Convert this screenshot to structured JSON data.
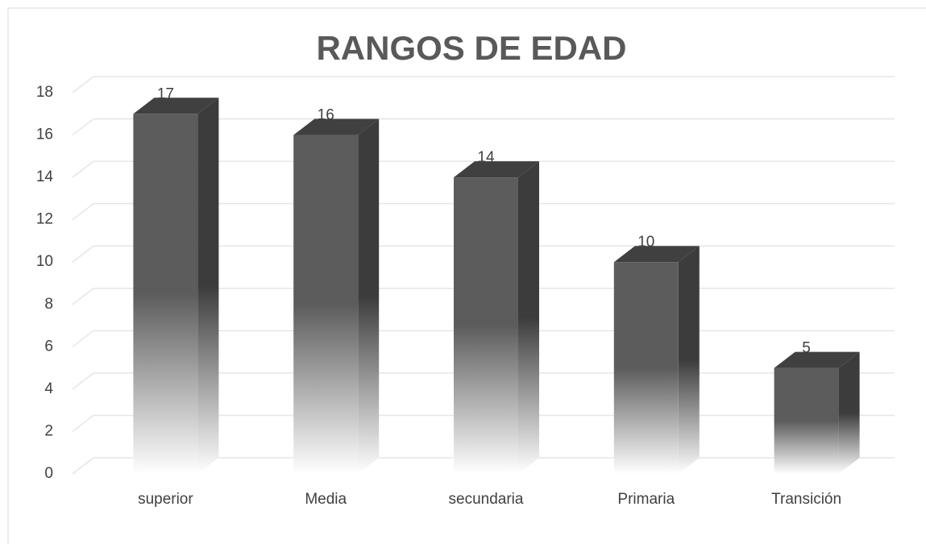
{
  "chart_data": {
    "type": "bar3d",
    "title": "RANGOS DE EDAD",
    "categories": [
      "superior",
      "Media",
      "secundaria",
      "Primaria",
      "Transición"
    ],
    "values": [
      17,
      16,
      14,
      10,
      5
    ],
    "color": "#5a5a5a",
    "ylim": [
      0,
      18
    ],
    "yticks": [
      0,
      2,
      4,
      6,
      8,
      10,
      12,
      14,
      16,
      18
    ],
    "grid": true
  }
}
